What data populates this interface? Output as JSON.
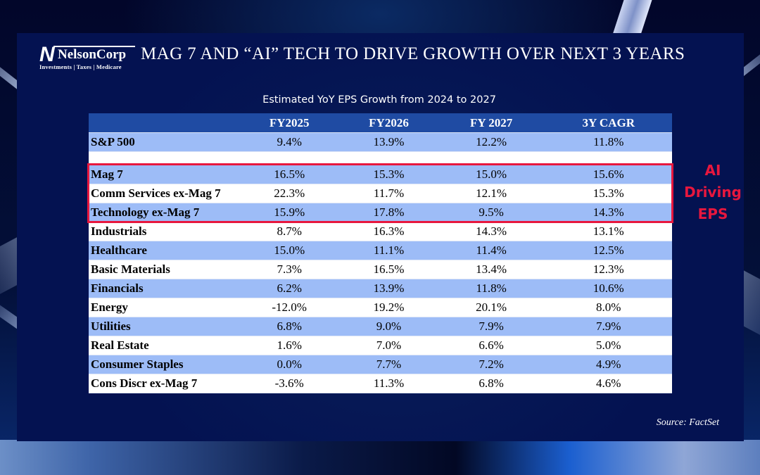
{
  "logo": {
    "mark": "N",
    "name": "NelsonCorp",
    "tagline": "Investments | Taxes | Medicare"
  },
  "title": "MAG 7 AND “AI” TECH TO DRIVE GROWTH OVER NEXT 3 YEARS",
  "subtitle": "Estimated YoY EPS Growth from 2024 to 2027",
  "table": {
    "columns": [
      "",
      "FY2025",
      "FY2026",
      "FY 2027",
      "3Y CAGR"
    ],
    "rows": [
      {
        "label": "S&P 500",
        "values": [
          "9.4%",
          "13.9%",
          "12.2%",
          "11.8%"
        ]
      },
      {
        "label": "Mag 7",
        "values": [
          "16.5%",
          "15.3%",
          "15.0%",
          "15.6%"
        ]
      },
      {
        "label": "Comm Services ex-Mag 7",
        "values": [
          "22.3%",
          "11.7%",
          "12.1%",
          "15.3%"
        ]
      },
      {
        "label": "Technology ex-Mag 7",
        "values": [
          "15.9%",
          "17.8%",
          "9.5%",
          "14.3%"
        ]
      },
      {
        "label": "Industrials",
        "values": [
          "8.7%",
          "16.3%",
          "14.3%",
          "13.1%"
        ]
      },
      {
        "label": "Healthcare",
        "values": [
          "15.0%",
          "11.1%",
          "11.4%",
          "12.5%"
        ]
      },
      {
        "label": "Basic Materials",
        "values": [
          "7.3%",
          "16.5%",
          "13.4%",
          "12.3%"
        ]
      },
      {
        "label": "Financials",
        "values": [
          "6.2%",
          "13.9%",
          "11.8%",
          "10.6%"
        ]
      },
      {
        "label": "Energy",
        "values": [
          "-12.0%",
          "19.2%",
          "20.1%",
          "8.0%"
        ]
      },
      {
        "label": "Utilities",
        "values": [
          "6.8%",
          "9.0%",
          "7.9%",
          "7.9%"
        ]
      },
      {
        "label": "Real Estate",
        "values": [
          "1.6%",
          "7.0%",
          "6.6%",
          "5.0%"
        ]
      },
      {
        "label": "Consumer Staples",
        "values": [
          "0.0%",
          "7.7%",
          "7.2%",
          "4.9%"
        ]
      },
      {
        "label": "Cons Discr ex-Mag 7",
        "values": [
          "-3.6%",
          "11.3%",
          "6.8%",
          "4.6%"
        ]
      }
    ]
  },
  "callout": {
    "lines": [
      "AI",
      "Driving",
      "EPS"
    ],
    "color": "#e8173e"
  },
  "source": "Source: FactSet",
  "colors": {
    "header_bg": "#1f4ba3",
    "row_alt_bg": "#9dbcf7",
    "panel_bg": "#061855",
    "highlight": "#e8173e"
  }
}
